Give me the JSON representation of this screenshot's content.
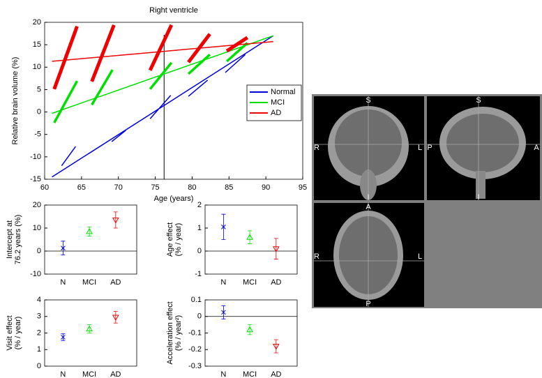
{
  "chart_data": [
    {
      "type": "line",
      "title": "Right ventricle",
      "xlabel": "Age (years)",
      "ylabel": "Relative brain volume (%)",
      "xlim": [
        60,
        95
      ],
      "xticks": [
        60,
        65,
        70,
        75,
        80,
        85,
        90,
        95
      ],
      "ylim": [
        -15,
        20
      ],
      "yticks": [
        -15,
        -10,
        -5,
        0,
        5,
        10,
        15,
        20
      ],
      "reference_x": 76.2,
      "legend": "right",
      "series": [
        {
          "name": "Normal",
          "color": "#0000dd",
          "x": [
            61,
            91
          ],
          "values": [
            -14.5,
            17
          ],
          "segment_width": 1.5,
          "segments": [
            {
              "x": [
                62.3,
                64.2
              ],
              "values": [
                -12,
                -7.7
              ]
            },
            {
              "x": [
                69.1,
                71
              ],
              "values": [
                -6.6,
                -4.1
              ]
            },
            {
              "x": [
                74.3,
                77.1
              ],
              "values": [
                -1.5,
                3.7
              ]
            },
            {
              "x": [
                79.5,
                82.1
              ],
              "values": [
                3.5,
                7.1
              ]
            },
            {
              "x": [
                84.5,
                87.2
              ],
              "values": [
                8.8,
                12.8
              ]
            }
          ]
        },
        {
          "name": "MCI",
          "color": "#00e000",
          "x": [
            61,
            91
          ],
          "values": [
            -0.3,
            17
          ],
          "segment_width": 3.5,
          "segments": [
            {
              "x": [
                61.3,
                64.4
              ],
              "values": [
                -2.4,
                6.9
              ]
            },
            {
              "x": [
                66.4,
                69.2
              ],
              "values": [
                1.6,
                9.4
              ]
            },
            {
              "x": [
                74.3,
                77.2
              ],
              "values": [
                5.1,
                11
              ]
            },
            {
              "x": [
                79.5,
                82.4
              ],
              "values": [
                8.5,
                12.8
              ]
            },
            {
              "x": [
                84.7,
                87.5
              ],
              "values": [
                11.3,
                15.4
              ]
            }
          ]
        },
        {
          "name": "AD",
          "color": "#ee0000",
          "x": [
            61,
            91
          ],
          "values": [
            11.3,
            15.7
          ],
          "segment_width": 5,
          "segments": [
            {
              "x": [
                61.3,
                64.4
              ],
              "values": [
                5.1,
                19.1
              ]
            },
            {
              "x": [
                66.4,
                69.4
              ],
              "values": [
                6.8,
                19.4
              ]
            },
            {
              "x": [
                74.3,
                77.2
              ],
              "values": [
                9.3,
                19.4
              ]
            },
            {
              "x": [
                79.5,
                82.4
              ],
              "values": [
                11.1,
                17.4
              ]
            },
            {
              "x": [
                84.7,
                87.5
              ],
              "values": [
                13.6,
                16.6
              ]
            }
          ]
        }
      ]
    },
    {
      "type": "errorbar",
      "ylabel": [
        "Intercept at",
        "76.2 years (%)"
      ],
      "categories": [
        "N",
        "MCI",
        "AD"
      ],
      "values": [
        1.3,
        8.5,
        13.5
      ],
      "errors": [
        3,
        2,
        3.5
      ],
      "colors": [
        "#0000dd",
        "#00e000",
        "#ee0000"
      ],
      "markers": [
        "x",
        "^",
        "v"
      ],
      "ylim": [
        -10,
        20
      ],
      "yticks": [
        -10,
        0,
        10,
        20
      ],
      "zero_line": true
    },
    {
      "type": "errorbar",
      "ylabel": [
        "Age effect",
        "(% / year)"
      ],
      "categories": [
        "N",
        "MCI",
        "AD"
      ],
      "values": [
        1.05,
        0.6,
        0.1
      ],
      "errors": [
        0.55,
        0.28,
        0.45
      ],
      "colors": [
        "#0000dd",
        "#00e000",
        "#ee0000"
      ],
      "markers": [
        "x",
        "^",
        "v"
      ],
      "ylim": [
        -1,
        2
      ],
      "yticks": [
        -1,
        0,
        1,
        2
      ],
      "zero_line": true
    },
    {
      "type": "errorbar",
      "ylabel": [
        "Visit effect",
        "(% / year)"
      ],
      "categories": [
        "N",
        "MCI",
        "AD"
      ],
      "values": [
        1.75,
        2.25,
        2.95
      ],
      "errors": [
        0.2,
        0.25,
        0.35
      ],
      "colors": [
        "#0000dd",
        "#00e000",
        "#ee0000"
      ],
      "markers": [
        "x",
        "^",
        "v"
      ],
      "ylim": [
        0,
        4
      ],
      "yticks": [
        0,
        1,
        2,
        3,
        4
      ],
      "zero_line": false
    },
    {
      "type": "errorbar",
      "ylabel": [
        "Acceleration effect",
        "(% / year²)"
      ],
      "categories": [
        "N",
        "MCI",
        "AD"
      ],
      "values": [
        0.025,
        -0.08,
        -0.18
      ],
      "errors": [
        0.04,
        0.03,
        0.04
      ],
      "colors": [
        "#0000dd",
        "#00e000",
        "#ee0000"
      ],
      "markers": [
        "x",
        "^",
        "v"
      ],
      "ylim": [
        -0.3,
        0.1
      ],
      "yticks": [
        -0.3,
        -0.2,
        -0.1,
        0,
        0.1
      ],
      "zero_line": true
    }
  ],
  "mri_labels": {
    "coronal": [
      "S",
      "R",
      "L",
      "I"
    ],
    "sagittal": [
      "S",
      "P",
      "A",
      "I"
    ],
    "axial": [
      "A",
      "R",
      "L",
      "P"
    ]
  }
}
